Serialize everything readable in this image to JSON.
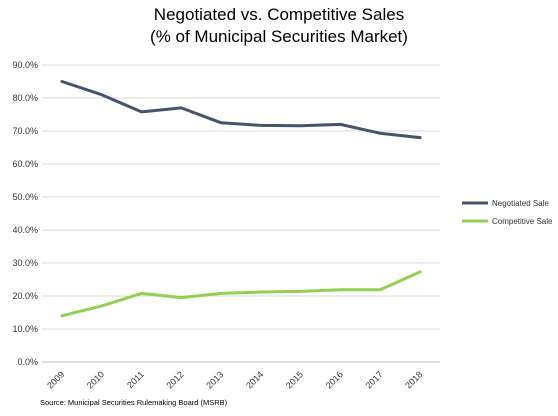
{
  "source_note": "Source: Municipal Securities Rulemaking Board (MSRB)",
  "colors": {
    "negotiated": "#44546a",
    "competitive": "#92d050",
    "grid": "#d9d9d9",
    "axis_text": "#333333"
  },
  "chart_data": {
    "type": "line",
    "title": [
      "Negotiated vs. Competitive Sales",
      "(% of Municipal Securities Market)"
    ],
    "xlabel": "",
    "ylabel": "",
    "categories": [
      "2009",
      "2010",
      "2011",
      "2012",
      "2013",
      "2014",
      "2015",
      "2016",
      "2017",
      "2018"
    ],
    "y_ticks": [
      "0.0%",
      "10.0%",
      "20.0%",
      "30.0%",
      "40.0%",
      "50.0%",
      "60.0%",
      "70.0%",
      "80.0%",
      "90.0%"
    ],
    "ylim": [
      0,
      90
    ],
    "grid": "horizontal",
    "legend_position": "right",
    "series": [
      {
        "name": "Negotiated Sale",
        "color": "#44546a",
        "values": [
          85.0,
          81.0,
          75.8,
          77.0,
          72.5,
          71.7,
          71.6,
          72.0,
          69.3,
          68.0
        ]
      },
      {
        "name": "Competitive Sale",
        "color": "#92d050",
        "values": [
          14.0,
          17.0,
          20.8,
          19.5,
          20.8,
          21.2,
          21.4,
          21.9,
          21.9,
          27.3
        ]
      }
    ]
  }
}
